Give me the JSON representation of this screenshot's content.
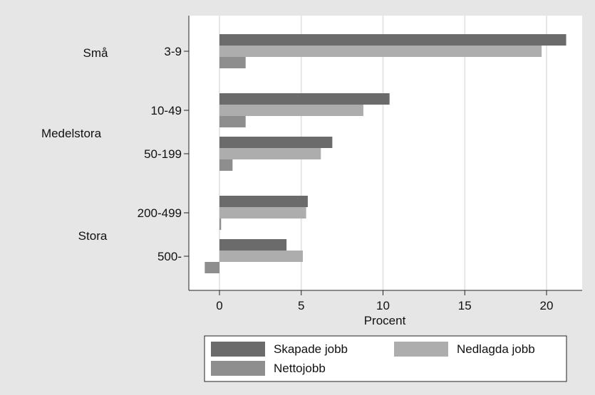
{
  "chart_data": {
    "type": "bar",
    "orientation": "horizontal",
    "xlabel": "Procent",
    "xlim": [
      -2,
      22
    ],
    "xticks": [
      0,
      5,
      10,
      15,
      20
    ],
    "grid": "vertical",
    "groups": [
      {
        "label": "Små",
        "categories": [
          "3-9"
        ]
      },
      {
        "label": "Medelstora",
        "categories": [
          "10-49",
          "50-199"
        ]
      },
      {
        "label": "Stora",
        "categories": [
          "200-499",
          "500-"
        ]
      }
    ],
    "categories": [
      "3-9",
      "10-49",
      "50-199",
      "200-499",
      "500-"
    ],
    "series": [
      {
        "name": "Skapade jobb",
        "color": "#6b6b6b",
        "values": [
          21.2,
          10.4,
          6.9,
          5.4,
          4.1
        ]
      },
      {
        "name": "Nedlagda jobb",
        "color": "#adadad",
        "values": [
          19.7,
          8.8,
          6.2,
          5.3,
          5.1
        ]
      },
      {
        "name": "Nettojobb",
        "color": "#8e8e8e",
        "values": [
          1.6,
          1.6,
          0.8,
          0.1,
          -0.9
        ]
      }
    ],
    "legend": {
      "position": "bottom",
      "columns": 2
    }
  }
}
